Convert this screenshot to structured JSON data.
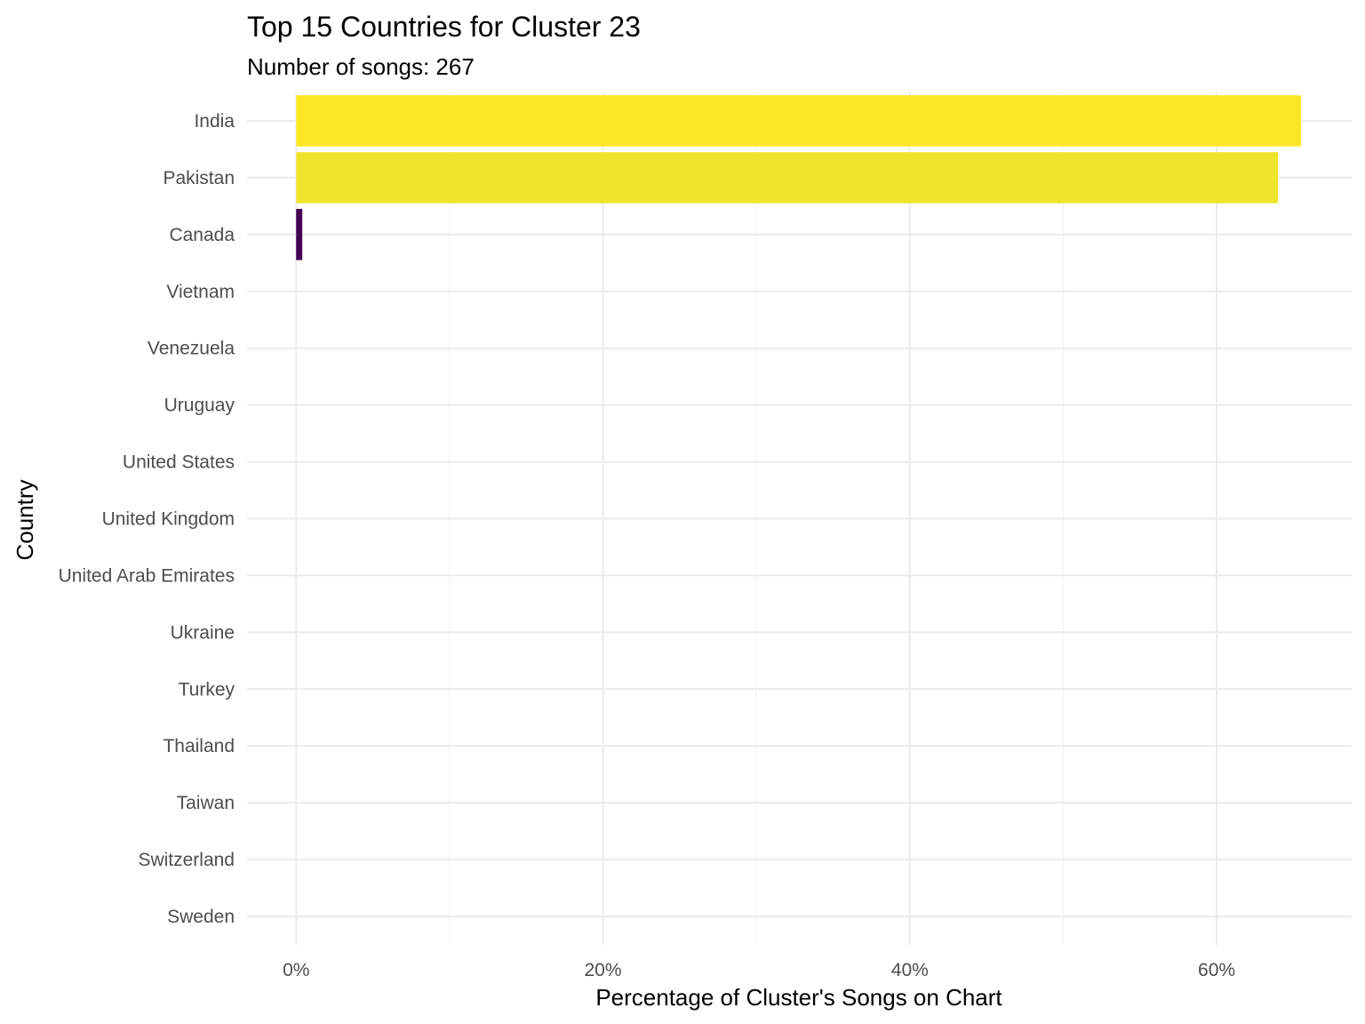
{
  "chart_data": {
    "type": "bar",
    "orientation": "horizontal",
    "title": "Top 15 Countries for Cluster 23",
    "subtitle": "Number of songs: 267",
    "xlabel": "Percentage of Cluster's Songs on Chart",
    "ylabel": "Country",
    "categories": [
      "India",
      "Pakistan",
      "Canada",
      "Vietnam",
      "Venezuela",
      "Uruguay",
      "United States",
      "United Kingdom",
      "United Arab Emirates",
      "Ukraine",
      "Turkey",
      "Thailand",
      "Taiwan",
      "Switzerland",
      "Sweden"
    ],
    "values": [
      65.5,
      64.0,
      0.4,
      0,
      0,
      0,
      0,
      0,
      0,
      0,
      0,
      0,
      0,
      0,
      0
    ],
    "colors": [
      "#fde725",
      "#efe42c",
      "#440154",
      "#440154",
      "#440154",
      "#440154",
      "#440154",
      "#440154",
      "#440154",
      "#440154",
      "#440154",
      "#440154",
      "#440154",
      "#440154",
      "#440154"
    ],
    "xticks": [
      0,
      20,
      40,
      60
    ],
    "xtick_labels": [
      "0%",
      "20%",
      "40%",
      "60%"
    ],
    "xlim": [
      -3.2,
      68.8
    ],
    "grid": true,
    "legend": "none"
  }
}
